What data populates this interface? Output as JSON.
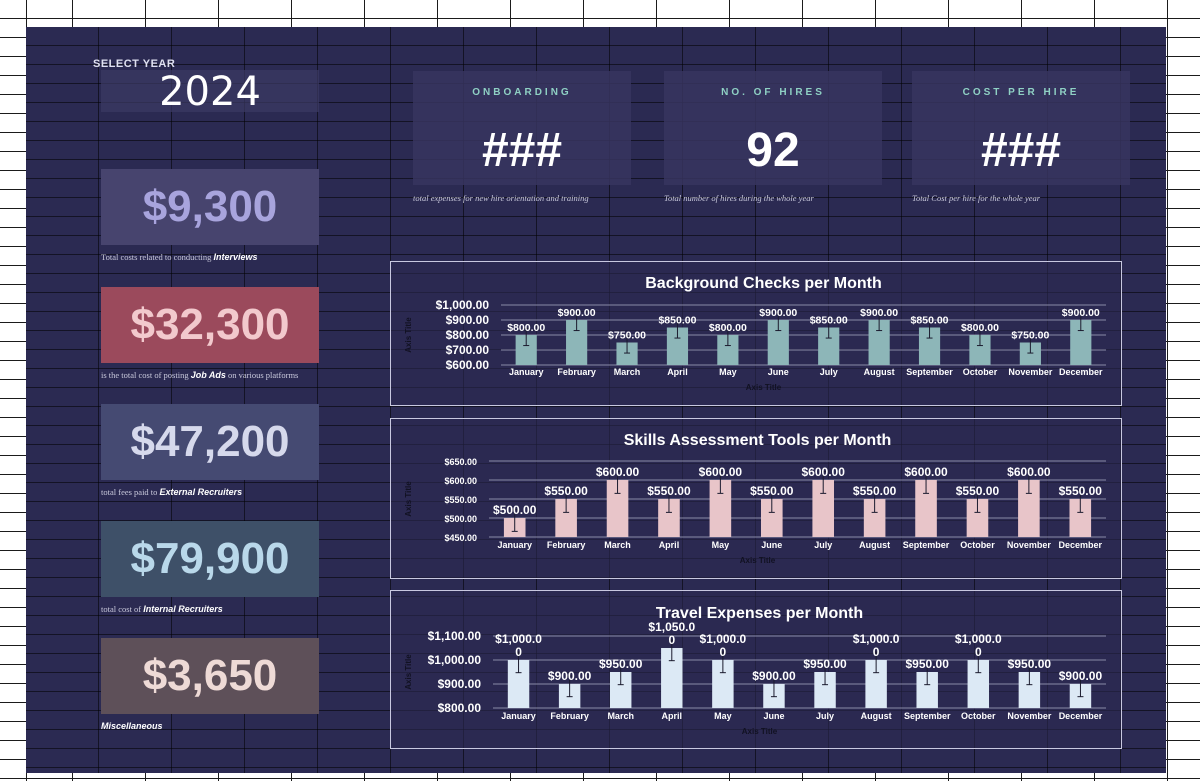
{
  "year_selector": {
    "label": "SELECT YEAR",
    "value": "2024"
  },
  "kpis": [
    {
      "value": "$9,300",
      "caption_pre": "Total costs related to conducting ",
      "caption_bold": "Interviews",
      "caption_post": "",
      "bg": "#47446e",
      "fg": "#a8a4dd"
    },
    {
      "value": "$32,300",
      "caption_pre": "is the total cost of posting ",
      "caption_bold": "Job Ads",
      "caption_post": " on various platforms",
      "bg": "#9b4a5c",
      "fg": "#f2c9cd"
    },
    {
      "value": "$47,200",
      "caption_pre": "total fees paid to ",
      "caption_bold": "External Recruiters",
      "caption_post": "",
      "bg": "#454a72",
      "fg": "#d6d9ec"
    },
    {
      "value": "$79,900",
      "caption_pre": "total cost of ",
      "caption_bold": "Internal Recruiters",
      "caption_post": "",
      "bg": "#3e5068",
      "fg": "#b9d8ea"
    },
    {
      "value": "$3,650",
      "caption_pre": "",
      "caption_bold": "Miscellaneous",
      "caption_post": "",
      "bg": "#5e5059",
      "fg": "#eedad6"
    }
  ],
  "cards": [
    {
      "title": "ONBOARDING",
      "value": "###",
      "caption": "total expenses for new hire orientation and training"
    },
    {
      "title": "NO. OF HIRES",
      "value": "92",
      "caption": "Total number of hires during the whole year"
    },
    {
      "title": "COST PER HIRE",
      "value": "###",
      "caption": "Total Cost per hire for the whole year"
    }
  ],
  "chart_data": [
    {
      "type": "bar",
      "title": "Background Checks per Month",
      "xlabel": "Axis Title",
      "ylabel": "Axis Title",
      "categories": [
        "January",
        "February",
        "March",
        "April",
        "May",
        "June",
        "July",
        "August",
        "September",
        "October",
        "November",
        "December"
      ],
      "values": [
        800,
        900,
        750,
        850,
        800,
        900,
        850,
        900,
        850,
        800,
        750,
        900
      ],
      "labels": [
        "$800.00",
        "$900.00",
        "$750.00",
        "$850.00",
        "$800.00",
        "$900.00",
        "$850.00",
        "$900.00",
        "$850.00",
        "$800.00",
        "$750.00",
        "$900.00"
      ],
      "ylim": [
        600,
        1000
      ],
      "ticks": [
        "$1,000.00",
        "$900.00",
        "$800.00",
        "$700.00",
        "$600.00"
      ],
      "tick_values": [
        1000,
        900,
        800,
        700,
        600
      ],
      "color": "#8db6b8",
      "grid": true
    },
    {
      "type": "bar",
      "title": "Skills Assessment Tools per Month",
      "xlabel": "Axis Title",
      "ylabel": "Axis Title",
      "categories": [
        "January",
        "February",
        "March",
        "April",
        "May",
        "June",
        "July",
        "August",
        "September",
        "October",
        "November",
        "December"
      ],
      "values": [
        500,
        550,
        600,
        550,
        600,
        550,
        600,
        550,
        600,
        550,
        600,
        550
      ],
      "labels": [
        "$500.00",
        "$550.00",
        "$600.00",
        "$550.00",
        "$600.00",
        "$550.00",
        "$600.00",
        "$550.00",
        "$600.00",
        "$550.00",
        "$600.00",
        "$550.00"
      ],
      "ylim": [
        450,
        650
      ],
      "ticks": [
        "$650.00",
        "$600.00",
        "$550.00",
        "$500.00",
        "$450.00"
      ],
      "tick_values": [
        650,
        600,
        550,
        500,
        450
      ],
      "color": "#e8c5c9",
      "grid": true
    },
    {
      "type": "bar",
      "title": "Travel Expenses per Month",
      "xlabel": "Axis Title",
      "ylabel": "Axis Title",
      "categories": [
        "January",
        "February",
        "March",
        "April",
        "May",
        "June",
        "July",
        "August",
        "September",
        "October",
        "November",
        "December"
      ],
      "values": [
        1000,
        900,
        950,
        1050,
        1000,
        900,
        950,
        1000,
        950,
        1000,
        950,
        900
      ],
      "labels": [
        "$1,000.0\n0",
        "$900.00",
        "$950.00",
        "$1,050.0\n0",
        "$1,000.0\n0",
        "$900.00",
        "$950.00",
        "$1,000.0\n0",
        "$950.00",
        "$1,000.0\n0",
        "$950.00",
        "$900.00"
      ],
      "ylim": [
        800,
        1100
      ],
      "ticks": [
        "$1,100.00",
        "$1,000.00",
        "$900.00",
        "$800.00"
      ],
      "tick_values": [
        1100,
        1000,
        900,
        800
      ],
      "color": "#dce9f5",
      "grid": true
    }
  ]
}
